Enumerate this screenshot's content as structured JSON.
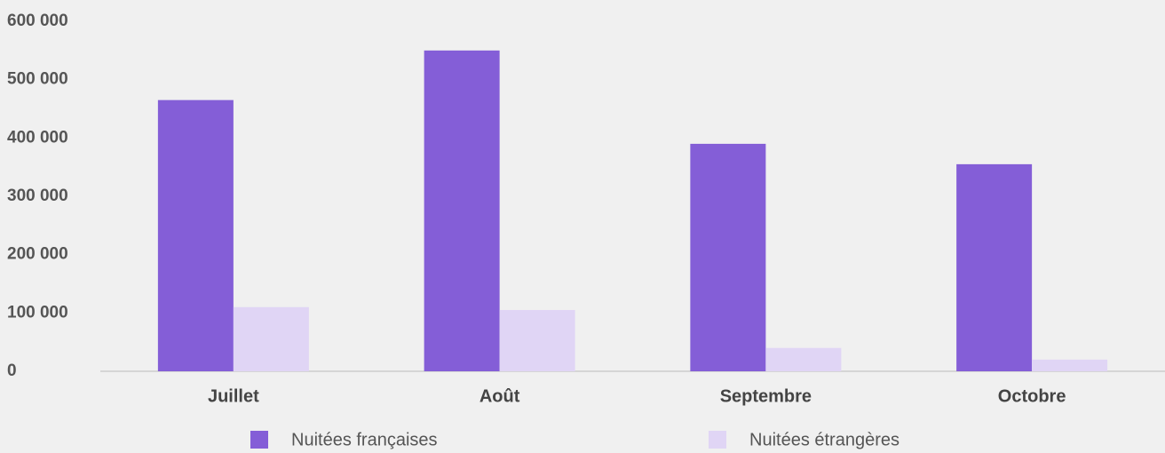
{
  "chart_data": {
    "type": "bar",
    "categories": [
      "Juillet",
      "Août",
      "Septembre",
      "Octobre"
    ],
    "series": [
      {
        "name": "Nuitées françaises",
        "color": "#845ed7",
        "values": [
          465000,
          550000,
          390000,
          355000
        ]
      },
      {
        "name": "Nuitées étrangères",
        "color": "#e0d5f5",
        "values": [
          110000,
          105000,
          40000,
          20000
        ]
      }
    ],
    "ylim": [
      0,
      600000
    ],
    "yticks": [
      0,
      {
        "value": 100000,
        "label": "100 000"
      },
      {
        "value": 200000,
        "label": "200 000"
      },
      {
        "value": 300000,
        "label": "300 000"
      },
      {
        "value": 400000,
        "label": "400 000"
      },
      {
        "value": 500000,
        "label": "500 000"
      },
      {
        "value": 600000,
        "label": "600 000"
      }
    ],
    "grid": false,
    "legend": "bottom"
  }
}
